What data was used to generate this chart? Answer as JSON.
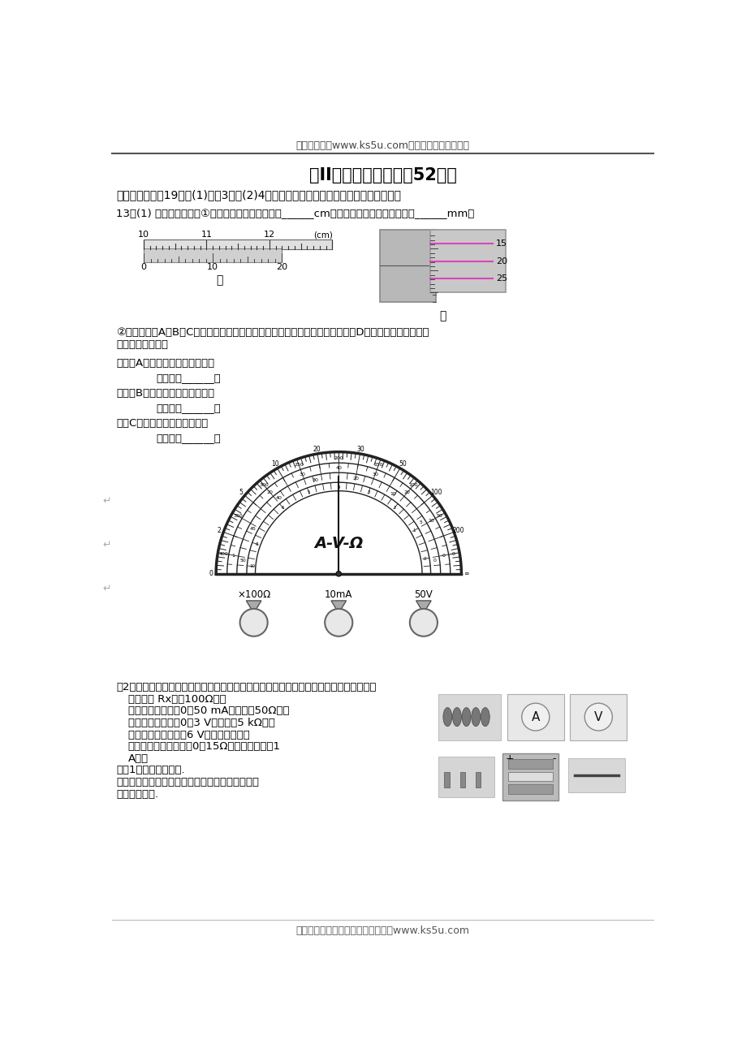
{
  "header_text": "高考资源网（www.ks5u.com），您身边的高考专家",
  "title": "第II卷（非选择题，共52分）",
  "section_title": "二、实验题（共19分，(1)每空3分，(2)4分，把正确答案填写在答题卡的相应位置。）",
  "q13_text": "13、(1) 实验题仪器读数①甲图中游标卡尺的读数是______cm。乙图中螺旋测微器的读数是______mm。",
  "label_jia": "甲",
  "label_yi": "乙",
  "q2_intro1": "②如图所示，A、B、C是多用表在进行不同测量时，转换开关分别指示的位置，D是多用表表盘指针在测",
  "q2_intro2": "量时的偏转位置。",
  "q2_a": "若是用A档测量，指针偏转如图，",
  "q2_a_ans": "则读数为______；",
  "q2_b": "若是用B档测量，指针偏转如图，",
  "q2_b_ans": "则读数为______；",
  "q2_c": "是用C档测量，指针偏转如图，",
  "q2_c_ans": "则读数为______。",
  "q3_title": "（2）如图所示为用伏安法测量一个定值电阻阻值的实验所需器材的实物图，器材规格如下",
  "q3_item0": "待测电阻 Rx（约100Ω）；",
  "q3_item1": "直流毫安表（量程0～50 mA，内阻约50Ω）；",
  "q3_item2": "直流电压表（量程0～3 V，内阻约5 kΩ）；",
  "q3_item3": "直流电源（输出电压6 V，内阻不计）；",
  "q3_item4": "滑动变阻器（阻值范围0～15Ω，允许最大电流1",
  "q3_item4b": "A）；",
  "q3_item5": "开关1个，导线若干条.",
  "q3_item6": "根据器材的规格和实验要求，画出实验电路图，在",
  "q3_item6b": "实物图上连线.",
  "footer_text": "欢迎广大教师踊跃来稿，稿酬丰厚。www.ks5u.com",
  "bg_color": "#ffffff",
  "text_color": "#000000"
}
